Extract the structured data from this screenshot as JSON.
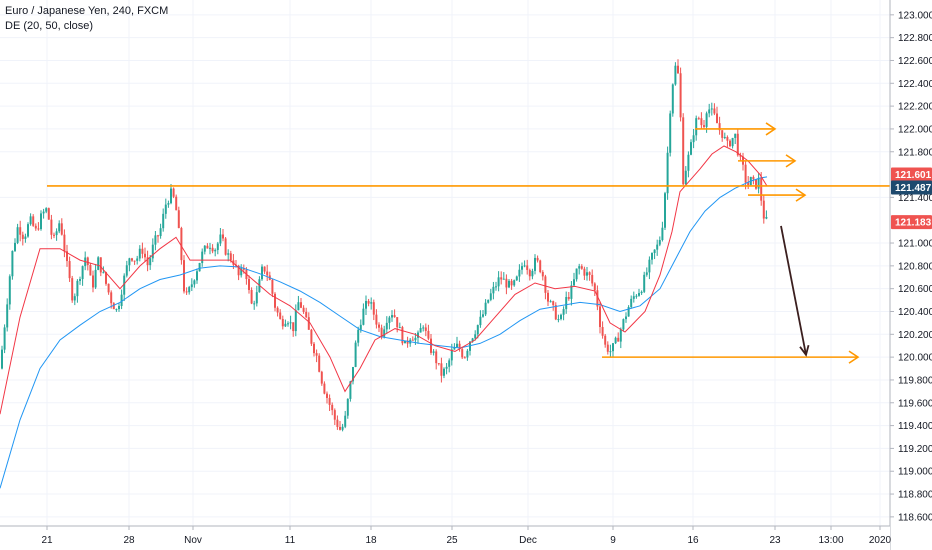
{
  "header": {
    "symbol_line": "Euro / Japanese Yen, 240, FXCM",
    "indicator_line": "DE (20, 50, close)"
  },
  "colors": {
    "up": "#26a69a",
    "down": "#ef5350",
    "ema_fast": "#f23645",
    "ema_slow": "#2196f3",
    "levels": "#ff9800",
    "forecast_arrow": "#3b1f1f",
    "grid": "#f0f3fa",
    "axis_text": "#131722"
  },
  "chart_data": {
    "type": "candlestick",
    "y_axis": {
      "range": [
        118.52,
        123.13
      ],
      "ticks": [
        {
          "value": 123.0,
          "label": "123.000"
        },
        {
          "value": 122.8,
          "label": "122.800"
        },
        {
          "value": 122.6,
          "label": "122.600"
        },
        {
          "value": 122.4,
          "label": "122.400"
        },
        {
          "value": 122.2,
          "label": "122.200"
        },
        {
          "value": 122.0,
          "label": "122.000"
        },
        {
          "value": 121.8,
          "label": "121.800"
        },
        {
          "value": 121.4,
          "label": "121.400"
        },
        {
          "value": 121.0,
          "label": "121.000"
        },
        {
          "value": 120.8,
          "label": "120.800"
        },
        {
          "value": 120.6,
          "label": "120.600"
        },
        {
          "value": 120.4,
          "label": "120.400"
        },
        {
          "value": 120.2,
          "label": "120.200"
        },
        {
          "value": 120.0,
          "label": "120.000"
        },
        {
          "value": 119.8,
          "label": "119.800"
        },
        {
          "value": 119.6,
          "label": "119.600"
        },
        {
          "value": 119.4,
          "label": "119.400"
        },
        {
          "value": 119.2,
          "label": "119.200"
        },
        {
          "value": 119.0,
          "label": "119.000"
        },
        {
          "value": 118.8,
          "label": "118.800"
        },
        {
          "value": 118.6,
          "label": "118.600"
        }
      ]
    },
    "x_axis": {
      "range": [
        0,
        880
      ],
      "labels": [
        {
          "x": 47,
          "label": "21"
        },
        {
          "x": 129,
          "label": "28"
        },
        {
          "x": 193,
          "label": "Nov"
        },
        {
          "x": 290,
          "label": "11"
        },
        {
          "x": 371,
          "label": "18"
        },
        {
          "x": 452,
          "label": "25"
        },
        {
          "x": 528,
          "label": "Dec"
        },
        {
          "x": 613,
          "label": "9"
        },
        {
          "x": 693,
          "label": "16"
        },
        {
          "x": 775,
          "label": "23"
        },
        {
          "x": 831,
          "label": "13:00"
        },
        {
          "x": 880,
          "label": "2020"
        }
      ]
    },
    "price_badges": [
      {
        "label": "121.601",
        "value": 121.601,
        "color": "#ef5350"
      },
      {
        "label": "121.487",
        "value": 121.487,
        "color": "#1e4a6e"
      },
      {
        "label": "121.183",
        "value": 121.183,
        "color": "#ef5350"
      }
    ],
    "candle_anchors": [
      [
        0,
        119.9
      ],
      [
        6,
        120.4
      ],
      [
        12,
        120.9
      ],
      [
        18,
        121.15
      ],
      [
        24,
        121.05
      ],
      [
        30,
        121.2
      ],
      [
        36,
        121.1
      ],
      [
        42,
        121.25
      ],
      [
        47,
        121.3
      ],
      [
        53,
        121.0
      ],
      [
        60,
        121.2
      ],
      [
        67,
        120.8
      ],
      [
        73,
        120.5
      ],
      [
        79,
        120.7
      ],
      [
        86,
        120.9
      ],
      [
        92,
        120.6
      ],
      [
        98,
        120.85
      ],
      [
        104,
        120.7
      ],
      [
        111,
        120.5
      ],
      [
        117,
        120.4
      ],
      [
        123,
        120.65
      ],
      [
        130,
        120.9
      ],
      [
        136,
        120.85
      ],
      [
        142,
        120.95
      ],
      [
        148,
        120.8
      ],
      [
        154,
        121.0
      ],
      [
        160,
        121.1
      ],
      [
        166,
        121.35
      ],
      [
        172,
        121.45
      ],
      [
        176,
        121.3
      ],
      [
        180,
        121.0
      ],
      [
        185,
        120.5
      ],
      [
        190,
        120.6
      ],
      [
        196,
        120.75
      ],
      [
        202,
        120.9
      ],
      [
        209,
        121.0
      ],
      [
        215,
        120.95
      ],
      [
        221,
        121.05
      ],
      [
        227,
        120.9
      ],
      [
        233,
        120.85
      ],
      [
        239,
        120.7
      ],
      [
        245,
        120.8
      ],
      [
        251,
        120.45
      ],
      [
        257,
        120.55
      ],
      [
        263,
        120.8
      ],
      [
        269,
        120.7
      ],
      [
        275,
        120.45
      ],
      [
        281,
        120.3
      ],
      [
        287,
        120.35
      ],
      [
        293,
        120.25
      ],
      [
        299,
        120.5
      ],
      [
        305,
        120.35
      ],
      [
        311,
        120.15
      ],
      [
        317,
        120.0
      ],
      [
        323,
        119.75
      ],
      [
        329,
        119.6
      ],
      [
        335,
        119.45
      ],
      [
        341,
        119.35
      ],
      [
        345,
        119.45
      ],
      [
        351,
        119.8
      ],
      [
        357,
        120.2
      ],
      [
        363,
        120.4
      ],
      [
        369,
        120.5
      ],
      [
        375,
        120.35
      ],
      [
        381,
        120.2
      ],
      [
        387,
        120.35
      ],
      [
        393,
        120.4
      ],
      [
        399,
        120.25
      ],
      [
        405,
        120.1
      ],
      [
        411,
        120.2
      ],
      [
        417,
        120.15
      ],
      [
        423,
        120.3
      ],
      [
        429,
        120.1
      ],
      [
        435,
        120.0
      ],
      [
        441,
        119.85
      ],
      [
        447,
        119.9
      ],
      [
        452,
        120.05
      ],
      [
        458,
        120.1
      ],
      [
        464,
        120.0
      ],
      [
        470,
        120.15
      ],
      [
        476,
        120.25
      ],
      [
        482,
        120.35
      ],
      [
        488,
        120.5
      ],
      [
        494,
        120.6
      ],
      [
        500,
        120.7
      ],
      [
        506,
        120.65
      ],
      [
        512,
        120.6
      ],
      [
        518,
        120.7
      ],
      [
        524,
        120.85
      ],
      [
        530,
        120.75
      ],
      [
        536,
        120.85
      ],
      [
        542,
        120.75
      ],
      [
        548,
        120.5
      ],
      [
        554,
        120.4
      ],
      [
        560,
        120.3
      ],
      [
        566,
        120.5
      ],
      [
        572,
        120.6
      ],
      [
        578,
        120.8
      ],
      [
        584,
        120.75
      ],
      [
        590,
        120.7
      ],
      [
        596,
        120.55
      ],
      [
        600,
        120.3
      ],
      [
        605,
        120.1
      ],
      [
        611,
        120.05
      ],
      [
        617,
        120.15
      ],
      [
        623,
        120.3
      ],
      [
        629,
        120.45
      ],
      [
        635,
        120.55
      ],
      [
        641,
        120.6
      ],
      [
        647,
        120.75
      ],
      [
        653,
        120.9
      ],
      [
        659,
        121.0
      ],
      [
        663,
        121.2
      ],
      [
        667,
        121.7
      ],
      [
        671,
        122.3
      ],
      [
        675,
        122.55
      ],
      [
        679,
        122.45
      ],
      [
        683,
        121.55
      ],
      [
        687,
        121.7
      ],
      [
        691,
        121.85
      ],
      [
        695,
        122.05
      ],
      [
        699,
        122.1
      ],
      [
        703,
        122.0
      ],
      [
        707,
        122.2
      ],
      [
        711,
        122.15
      ],
      [
        715,
        122.1
      ],
      [
        719,
        122.0
      ],
      [
        723,
        121.95
      ],
      [
        727,
        121.85
      ],
      [
        731,
        121.9
      ],
      [
        735,
        121.95
      ],
      [
        739,
        121.75
      ],
      [
        743,
        121.65
      ],
      [
        747,
        121.5
      ],
      [
        751,
        121.55
      ],
      [
        755,
        121.5
      ],
      [
        759,
        121.55
      ],
      [
        763,
        121.25
      ],
      [
        767,
        121.18
      ]
    ],
    "ema_fast": {
      "name": "",
      "points": [
        [
          0,
          119.5
        ],
        [
          20,
          120.35
        ],
        [
          40,
          120.95
        ],
        [
          60,
          120.95
        ],
        [
          80,
          120.85
        ],
        [
          100,
          120.8
        ],
        [
          120,
          120.6
        ],
        [
          140,
          120.8
        ],
        [
          160,
          120.95
        ],
        [
          176,
          121.05
        ],
        [
          190,
          120.85
        ],
        [
          210,
          120.85
        ],
        [
          230,
          120.85
        ],
        [
          250,
          120.7
        ],
        [
          270,
          120.55
        ],
        [
          290,
          120.45
        ],
        [
          310,
          120.3
        ],
        [
          330,
          120.0
        ],
        [
          345,
          119.7
        ],
        [
          360,
          119.9
        ],
        [
          375,
          120.15
        ],
        [
          395,
          120.25
        ],
        [
          415,
          120.2
        ],
        [
          435,
          120.1
        ],
        [
          455,
          120.05
        ],
        [
          475,
          120.15
        ],
        [
          495,
          120.35
        ],
        [
          515,
          120.55
        ],
        [
          535,
          120.65
        ],
        [
          555,
          120.6
        ],
        [
          575,
          120.62
        ],
        [
          595,
          120.58
        ],
        [
          610,
          120.3
        ],
        [
          625,
          120.22
        ],
        [
          645,
          120.4
        ],
        [
          660,
          120.72
        ],
        [
          672,
          121.1
        ],
        [
          680,
          121.45
        ],
        [
          690,
          121.55
        ],
        [
          700,
          121.65
        ],
        [
          712,
          121.78
        ],
        [
          724,
          121.85
        ],
        [
          736,
          121.8
        ],
        [
          748,
          121.72
        ],
        [
          760,
          121.6
        ],
        [
          767,
          121.5
        ]
      ]
    },
    "ema_slow": {
      "name": "",
      "points": [
        [
          0,
          118.85
        ],
        [
          20,
          119.45
        ],
        [
          40,
          119.9
        ],
        [
          60,
          120.15
        ],
        [
          80,
          120.28
        ],
        [
          100,
          120.4
        ],
        [
          120,
          120.48
        ],
        [
          140,
          120.6
        ],
        [
          160,
          120.68
        ],
        [
          180,
          120.72
        ],
        [
          200,
          120.78
        ],
        [
          220,
          120.8
        ],
        [
          240,
          120.79
        ],
        [
          260,
          120.73
        ],
        [
          280,
          120.66
        ],
        [
          300,
          120.58
        ],
        [
          320,
          120.48
        ],
        [
          340,
          120.36
        ],
        [
          360,
          120.24
        ],
        [
          380,
          120.18
        ],
        [
          400,
          120.15
        ],
        [
          420,
          120.12
        ],
        [
          440,
          120.1
        ],
        [
          460,
          120.08
        ],
        [
          480,
          120.12
        ],
        [
          500,
          120.2
        ],
        [
          520,
          120.32
        ],
        [
          540,
          120.42
        ],
        [
          560,
          120.45
        ],
        [
          580,
          120.48
        ],
        [
          600,
          120.46
        ],
        [
          620,
          120.4
        ],
        [
          640,
          120.45
        ],
        [
          660,
          120.6
        ],
        [
          675,
          120.85
        ],
        [
          690,
          121.1
        ],
        [
          705,
          121.28
        ],
        [
          720,
          121.4
        ],
        [
          735,
          121.48
        ],
        [
          750,
          121.54
        ],
        [
          760,
          121.57
        ],
        [
          767,
          121.58
        ]
      ]
    },
    "levels": [
      {
        "from_x": 47,
        "to_x": 890,
        "y": 121.5,
        "arrow": false
      },
      {
        "from_x": 695,
        "to_x": 775,
        "y": 122.0,
        "arrow": true
      },
      {
        "from_x": 738,
        "to_x": 795,
        "y": 121.72,
        "arrow": true
      },
      {
        "from_x": 748,
        "to_x": 805,
        "y": 121.42,
        "arrow": true
      },
      {
        "from_x": 602,
        "to_x": 858,
        "y": 120.0,
        "arrow": true
      }
    ],
    "forecast_arrow": {
      "from_x": 781,
      "from_y": 121.15,
      "to_x": 806,
      "to_y": 120.02
    }
  }
}
